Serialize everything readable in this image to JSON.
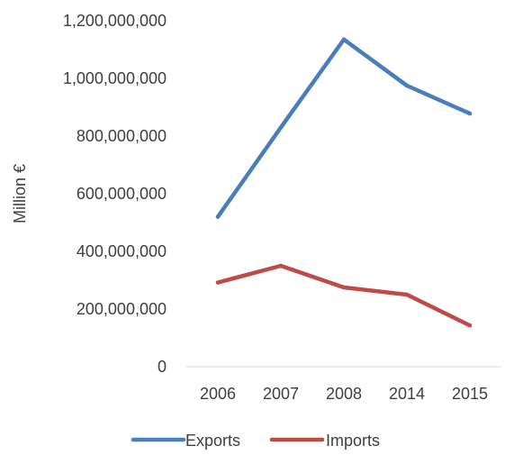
{
  "chart_data": {
    "type": "line",
    "title": "",
    "xlabel": "",
    "ylabel": "Million  €",
    "categories": [
      "2006",
      "2007",
      "2008",
      "2014",
      "2015"
    ],
    "series": [
      {
        "name": "Exports",
        "color": "#4a7ebb",
        "values": [
          520000000,
          830000000,
          1135000000,
          975000000,
          878000000
        ]
      },
      {
        "name": "Imports",
        "color": "#be4b48",
        "values": [
          292000000,
          350000000,
          275000000,
          250000000,
          143000000
        ]
      }
    ],
    "ylim": [
      0,
      1200000000
    ],
    "yticks": [
      {
        "value": 0,
        "label": "0"
      },
      {
        "value": 200000000,
        "label": "200,000,000"
      },
      {
        "value": 400000000,
        "label": "400,000,000"
      },
      {
        "value": 600000000,
        "label": "600,000,000"
      },
      {
        "value": 800000000,
        "label": "800,000,000"
      },
      {
        "value": 1000000000,
        "label": "1,000,000,000"
      },
      {
        "value": 1200000000,
        "label": "1,200,000,000"
      }
    ],
    "grid": false,
    "legend": "bottom"
  }
}
